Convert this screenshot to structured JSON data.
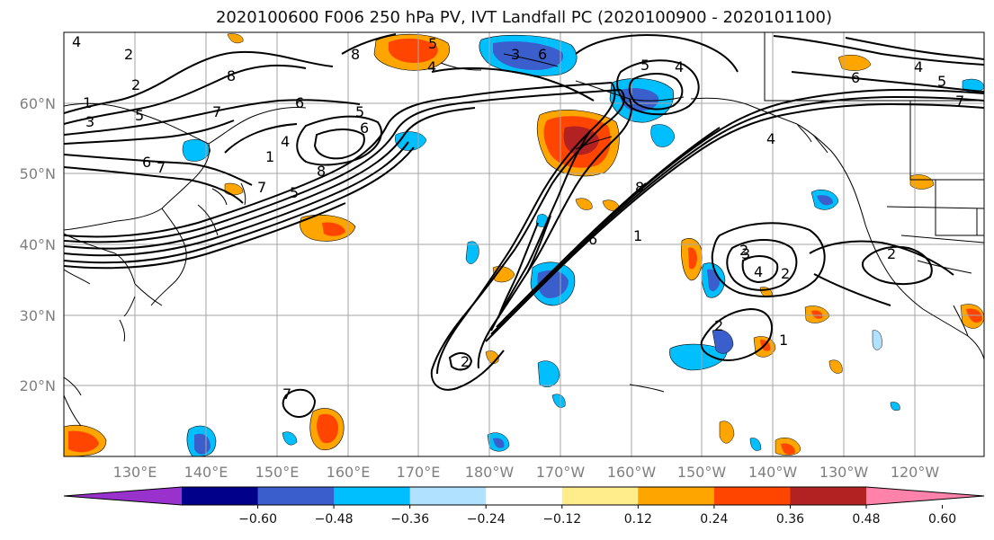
{
  "title": "2020100600 F006 250 hPa PV, IVT Landfall PC (2020100900 - 2020101100)",
  "lat_labels": [
    "60°N",
    "50°N",
    "40°N",
    "30°N",
    "20°N"
  ],
  "lon_labels": [
    "130°E",
    "140°E",
    "150°E",
    "160°E",
    "170°E",
    "180°W",
    "170°W",
    "160°W",
    "150°W",
    "140°W",
    "130°W",
    "120°W"
  ],
  "colorbar": {
    "ticks": [
      "−0.60",
      "−0.48",
      "−0.36",
      "−0.24",
      "−0.12",
      "0.12",
      "0.24",
      "0.36",
      "0.48",
      "0.60"
    ],
    "colors": [
      "#9932cc",
      "#00008b",
      "#3a5fcd",
      "#00bfff",
      "#b0e2ff",
      "#ffffff",
      "#ffec8b",
      "#ffa500",
      "#ff4500",
      "#b22222",
      "#ff82ab"
    ]
  },
  "contour_labels": [
    "4",
    "2",
    "1",
    "3",
    "5",
    "6",
    "7",
    "8",
    "2",
    "5",
    "4",
    "6",
    "8",
    "7",
    "5",
    "6",
    "4",
    "8",
    "1",
    "5",
    "6",
    "4",
    "7",
    "2",
    "1",
    "8",
    "6",
    "5",
    "3",
    "4",
    "2",
    "2",
    "1",
    "2",
    "7",
    "3",
    "4",
    "5",
    "6",
    "7",
    "4",
    "2"
  ]
}
